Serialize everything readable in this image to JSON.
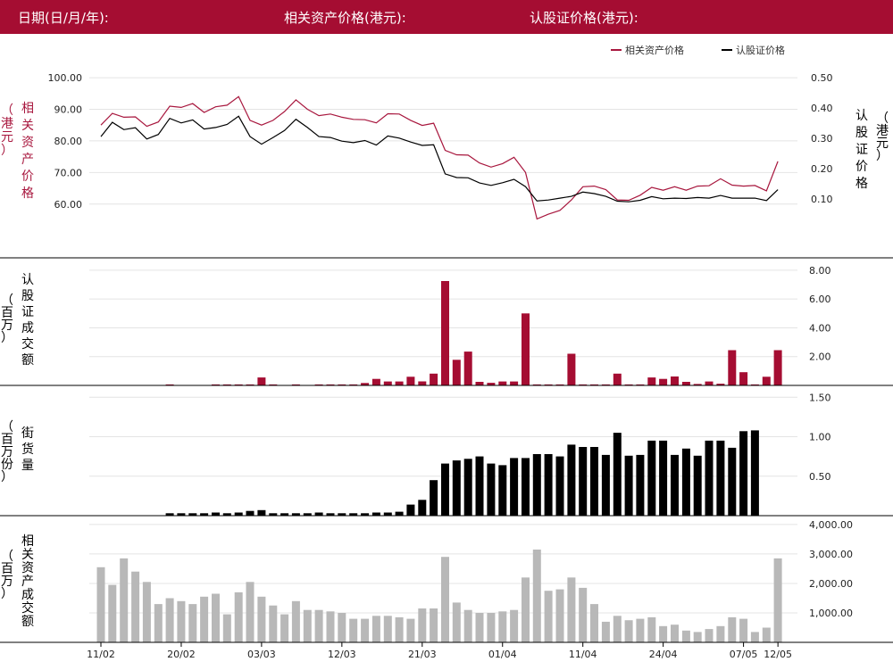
{
  "header": {
    "date_label": "日期(日/月/年):",
    "asset_price_label": "相关资产价格(港元):",
    "warrant_price_label": "认股证价格(港元):"
  },
  "legend": {
    "asset": "相关资产价格",
    "warrant": "认股证价格"
  },
  "colors": {
    "header": "#a50d32",
    "asset": "#a8173e",
    "warrant": "#000000",
    "turnover_bar": "#a50d32",
    "outstanding_bar": "#000000",
    "asset_turnover_bar": "#b8b8b8"
  },
  "chart_data": [
    {
      "type": "line",
      "panel": "price",
      "y_left_label_chars": [
        "相",
        "关",
        "资",
        "产",
        "价",
        "格"
      ],
      "y_left_unit_chars": [
        "（",
        "港",
        "元",
        "）"
      ],
      "y_right_label_chars": [
        "认",
        "股",
        "证",
        "价",
        "格"
      ],
      "y_right_unit_chars": [
        "（",
        "港",
        "元",
        "）"
      ],
      "y_left_ticks": [
        "100.00",
        "90.00",
        "80.00",
        "70.00",
        "60.00"
      ],
      "y_left_range": [
        54,
        102
      ],
      "y_right_ticks": [
        "0.50",
        "0.40",
        "0.30",
        "0.20",
        "0.10"
      ],
      "y_right_range": [
        0.02,
        0.52
      ],
      "series": [
        {
          "name": "相关资产价格",
          "axis": "left",
          "values": [
            85.0,
            88.7,
            87.5,
            87.6,
            84.6,
            86.0,
            91.0,
            90.6,
            91.8,
            89.0,
            90.8,
            91.3,
            94.0,
            86.5,
            85.0,
            86.5,
            89.3,
            93.0,
            90.0,
            88.0,
            88.5,
            87.5,
            86.8,
            86.7,
            85.7,
            88.6,
            88.5,
            86.5,
            84.9,
            85.6,
            77.0,
            75.6,
            75.5,
            73.0,
            71.7,
            72.8,
            74.8,
            70.0,
            55.3,
            56.8,
            58.0,
            61.3,
            65.5,
            65.7,
            64.6,
            61.3,
            61.2,
            62.8,
            65.3,
            64.4,
            65.5,
            64.4,
            65.7,
            65.8,
            68.0,
            66.0,
            65.7,
            65.9,
            64.2,
            73.5
          ]
        },
        {
          "name": "认股证价格",
          "axis": "right",
          "values": [
            0.305,
            0.352,
            0.328,
            0.334,
            0.297,
            0.312,
            0.365,
            0.35,
            0.36,
            0.33,
            0.335,
            0.345,
            0.372,
            0.305,
            0.28,
            0.302,
            0.325,
            0.362,
            0.335,
            0.305,
            0.302,
            0.29,
            0.285,
            0.292,
            0.277,
            0.307,
            0.3,
            0.287,
            0.276,
            0.278,
            0.182,
            0.17,
            0.169,
            0.152,
            0.144,
            0.153,
            0.164,
            0.14,
            0.093,
            0.096,
            0.102,
            0.108,
            0.122,
            0.117,
            0.108,
            0.092,
            0.09,
            0.095,
            0.107,
            0.1,
            0.102,
            0.101,
            0.104,
            0.102,
            0.111,
            0.102,
            0.102,
            0.102,
            0.094,
            0.13
          ]
        }
      ]
    },
    {
      "type": "bar",
      "panel": "warrant_turnover",
      "y_label_chars": [
        "认",
        "股",
        "证",
        "成",
        "交",
        "额"
      ],
      "y_unit_chars": [
        "（",
        "百",
        "万",
        "）"
      ],
      "y_ticks": [
        "8.00",
        "6.00",
        "4.00",
        "2.00"
      ],
      "y_range": [
        0,
        8.8
      ],
      "values": [
        0,
        0,
        0,
        0,
        0,
        0,
        0.07,
        0,
        0,
        0,
        0.07,
        0.07,
        0.07,
        0.07,
        0.55,
        0.07,
        0,
        0.07,
        0,
        0.07,
        0.07,
        0.07,
        0.07,
        0.17,
        0.45,
        0.27,
        0.27,
        0.6,
        0.28,
        0.82,
        7.25,
        1.78,
        2.35,
        0.25,
        0.18,
        0.27,
        0.27,
        5.0,
        0.07,
        0.07,
        0.07,
        2.2,
        0.07,
        0.07,
        0.07,
        0.82,
        0.07,
        0.07,
        0.55,
        0.45,
        0.62,
        0.25,
        0.1,
        0.27,
        0.12,
        2.45,
        0.92,
        0.07,
        0.6,
        2.45
      ]
    },
    {
      "type": "bar",
      "panel": "outstanding",
      "y_label_chars": [
        "街",
        "货",
        "量"
      ],
      "y_unit_chars": [
        "（",
        "百",
        "万",
        "份",
        "）"
      ],
      "y_ticks": [
        "1.50",
        "1.00",
        "0.50"
      ],
      "y_range": [
        0,
        1.65
      ],
      "values": [
        0,
        0,
        0,
        0,
        0,
        0,
        0.03,
        0.03,
        0.03,
        0.03,
        0.04,
        0.03,
        0.04,
        0.06,
        0.07,
        0.03,
        0.03,
        0.03,
        0.03,
        0.04,
        0.03,
        0.03,
        0.03,
        0.03,
        0.04,
        0.04,
        0.05,
        0.14,
        0.2,
        0.45,
        0.66,
        0.7,
        0.72,
        0.75,
        0.66,
        0.64,
        0.73,
        0.73,
        0.78,
        0.78,
        0.75,
        0.9,
        0.87,
        0.87,
        0.77,
        1.05,
        0.76,
        0.77,
        0.95,
        0.95,
        0.77,
        0.85,
        0.76,
        0.95,
        0.95,
        0.86,
        1.07,
        1.08,
        0,
        0
      ]
    },
    {
      "type": "bar",
      "panel": "asset_turnover",
      "y_label_chars": [
        "相",
        "关",
        "资",
        "产",
        "成",
        "交",
        "额"
      ],
      "y_unit_chars": [
        "（",
        "百",
        "万",
        "）"
      ],
      "y_ticks": [
        "4,000.00",
        "3,000.00",
        "2,000.00",
        "1,000.00"
      ],
      "y_range": [
        0,
        4300
      ],
      "x_ticks": [
        "11/02",
        "20/02",
        "03/03",
        "12/03",
        "21/03",
        "01/04",
        "11/04",
        "24/04",
        "07/05",
        "12/05"
      ],
      "x_tick_positions": [
        0,
        7,
        14,
        21,
        28,
        35,
        42,
        49,
        56,
        59
      ],
      "values": [
        2550,
        1950,
        2850,
        2400,
        2050,
        1300,
        1500,
        1400,
        1300,
        1550,
        1650,
        950,
        1700,
        2050,
        1550,
        1250,
        950,
        1400,
        1100,
        1100,
        1050,
        1000,
        800,
        800,
        900,
        900,
        850,
        800,
        1150,
        1150,
        2900,
        1350,
        1100,
        1000,
        1000,
        1050,
        1100,
        2200,
        3150,
        1750,
        1800,
        2200,
        1850,
        1300,
        700,
        900,
        750,
        800,
        850,
        550,
        600,
        400,
        350,
        450,
        550,
        850,
        800,
        350,
        500,
        2850
      ]
    }
  ]
}
